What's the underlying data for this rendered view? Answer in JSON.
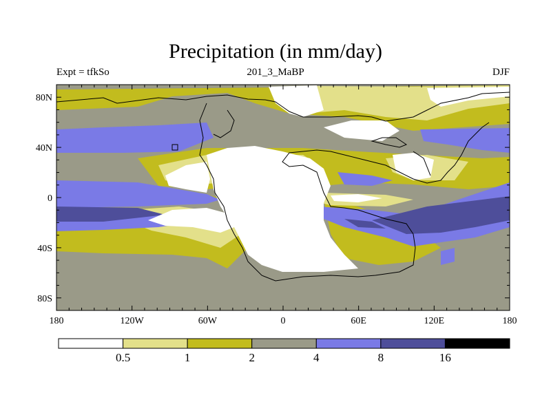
{
  "title": "Precipitation (in mm/day)",
  "subtitle_left": "Expt = tfkSo",
  "subtitle_center": "201_3_MaBP",
  "subtitle_right": "DJF",
  "map": {
    "lon_range": [
      -180,
      180
    ],
    "lat_range": [
      -90,
      90
    ]
  },
  "x_ticks": [
    {
      "lon": -180,
      "label": "180"
    },
    {
      "lon": -120,
      "label": "120W"
    },
    {
      "lon": -60,
      "label": "60W"
    },
    {
      "lon": 0,
      "label": "0"
    },
    {
      "lon": 60,
      "label": "60E"
    },
    {
      "lon": 120,
      "label": "120E"
    },
    {
      "lon": 180,
      "label": "180"
    }
  ],
  "y_ticks": [
    {
      "lat": 80,
      "label": "80N"
    },
    {
      "lat": 40,
      "label": "40N"
    },
    {
      "lat": 0,
      "label": "0"
    },
    {
      "lat": -40,
      "label": "40S"
    },
    {
      "lat": -80,
      "label": "80S"
    }
  ],
  "colorbar": {
    "levels": [
      "0.5",
      "1",
      "2",
      "4",
      "8",
      "16"
    ],
    "colors": [
      "#ffffff",
      "#e3e08a",
      "#c2bc1e",
      "#9a9a88",
      "#7a7ae6",
      "#4e4e9a",
      "#000000"
    ]
  }
}
